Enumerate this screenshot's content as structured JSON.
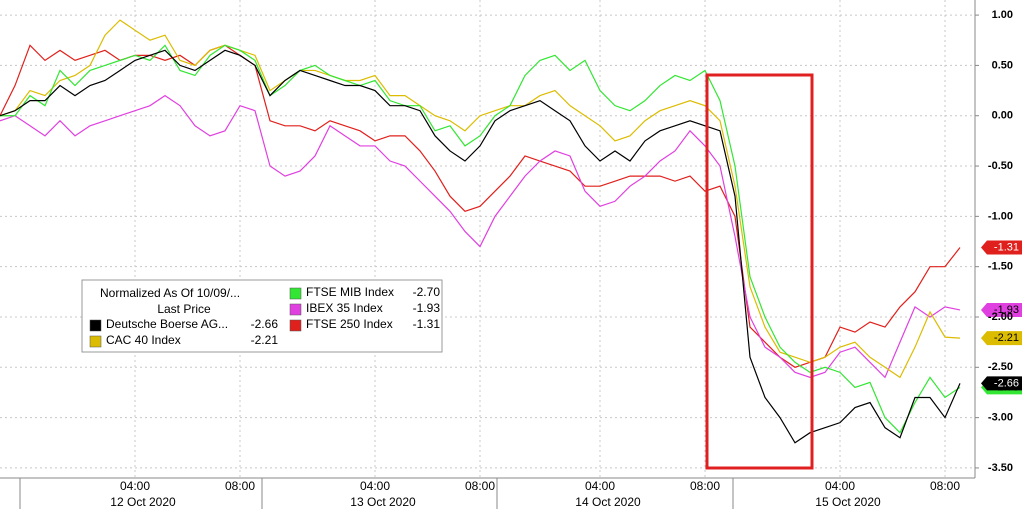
{
  "chart_data": {
    "type": "line",
    "categories": [
      null,
      null,
      null,
      null,
      null,
      null,
      null,
      null,
      null,
      "04:00",
      null,
      null,
      null,
      null,
      null,
      null,
      "08:00",
      null,
      null,
      null,
      null,
      null,
      null,
      null,
      null,
      "04:00",
      null,
      null,
      null,
      null,
      null,
      null,
      "08:00",
      null,
      null,
      null,
      null,
      null,
      null,
      null,
      "04:00",
      null,
      null,
      null,
      null,
      null,
      null,
      "08:00",
      null,
      null,
      null,
      null,
      null,
      null,
      null,
      null,
      "04:00",
      null,
      null,
      null,
      null,
      null,
      null,
      "08:00",
      null
    ],
    "day_labels": [
      "12 Oct 2020",
      "13 Oct 2020",
      "14 Oct 2020",
      "15 Oct 2020"
    ],
    "ylim": [
      -3.6,
      1.15
    ],
    "yticks": [
      {
        "value": 1,
        "label": "1.00"
      },
      {
        "value": 0.5,
        "label": "0.50"
      },
      {
        "value": 0,
        "label": "0.00"
      },
      {
        "value": -0.5,
        "label": "-0.50"
      },
      {
        "value": -1,
        "label": "-1.00"
      },
      {
        "value": -1.5,
        "label": "-1.50"
      },
      {
        "value": -2,
        "label": "-2.00"
      },
      {
        "value": -2.5,
        "label": "-2.50"
      },
      {
        "value": -3,
        "label": "-3.00"
      },
      {
        "value": -3.5,
        "label": "-3.50"
      }
    ],
    "grid": true,
    "legend": {
      "title": "Normalized As Of 10/09/...",
      "subtitle": "Last Price"
    },
    "series": [
      {
        "name": "Deutsche Boerse AG...",
        "last_price": "-2.66",
        "color": "#000000",
        "text_color": "#ffffff",
        "values": [
          0.0,
          0.05,
          0.15,
          0.15,
          0.3,
          0.2,
          0.3,
          0.35,
          0.45,
          0.55,
          0.6,
          0.65,
          0.5,
          0.45,
          0.55,
          0.65,
          0.6,
          0.5,
          0.2,
          0.35,
          0.45,
          0.4,
          0.35,
          0.3,
          0.3,
          0.25,
          0.1,
          0.1,
          0.05,
          -0.2,
          -0.35,
          -0.45,
          -0.3,
          -0.05,
          0.05,
          0.1,
          0.15,
          0.05,
          -0.05,
          -0.3,
          -0.45,
          -0.35,
          -0.45,
          -0.25,
          -0.15,
          -0.1,
          -0.05,
          -0.1,
          -0.15,
          -0.8,
          -2.4,
          -2.8,
          -3.0,
          -3.25,
          -3.15,
          -3.1,
          -3.05,
          -2.9,
          -2.85,
          -3.1,
          -3.2,
          -2.8,
          -2.8,
          -3.0,
          -2.66
        ]
      },
      {
        "name": "CAC 40 Index",
        "last_price": "-2.21",
        "color": "#dcbc00",
        "text_color": "#000000",
        "values": [
          0.0,
          0.05,
          0.25,
          0.2,
          0.35,
          0.4,
          0.5,
          0.8,
          0.95,
          0.85,
          0.75,
          0.8,
          0.55,
          0.5,
          0.65,
          0.7,
          0.65,
          0.6,
          0.25,
          0.35,
          0.45,
          0.45,
          0.4,
          0.35,
          0.35,
          0.4,
          0.2,
          0.2,
          0.1,
          0.0,
          -0.05,
          -0.15,
          0.0,
          0.05,
          0.1,
          0.1,
          0.2,
          0.25,
          0.1,
          0.0,
          -0.1,
          -0.25,
          -0.2,
          -0.05,
          0.05,
          0.1,
          0.15,
          0.1,
          -0.05,
          -0.7,
          -1.7,
          -2.1,
          -2.35,
          -2.4,
          -2.45,
          -2.4,
          -2.3,
          -2.25,
          -2.4,
          -2.5,
          -2.6,
          -2.3,
          -1.95,
          -2.2,
          -2.21
        ]
      },
      {
        "name": "FTSE MIB Index",
        "last_price": "-2.70",
        "color": "#33e633",
        "text_color": "#000000",
        "values": [
          0.0,
          0.0,
          0.2,
          0.1,
          0.45,
          0.3,
          0.45,
          0.5,
          0.55,
          0.6,
          0.55,
          0.7,
          0.45,
          0.4,
          0.6,
          0.7,
          0.65,
          0.55,
          0.2,
          0.3,
          0.45,
          0.5,
          0.4,
          0.35,
          0.3,
          0.35,
          0.15,
          0.1,
          0.1,
          -0.15,
          -0.1,
          -0.3,
          -0.2,
          0.0,
          0.1,
          0.4,
          0.55,
          0.6,
          0.45,
          0.55,
          0.25,
          0.1,
          0.05,
          0.15,
          0.3,
          0.4,
          0.35,
          0.45,
          0.15,
          -0.5,
          -1.6,
          -2.0,
          -2.3,
          -2.45,
          -2.55,
          -2.5,
          -2.55,
          -2.7,
          -2.65,
          -3.0,
          -3.15,
          -2.85,
          -2.6,
          -2.8,
          -2.7
        ]
      },
      {
        "name": "IBEX 35 Index",
        "last_price": "-1.93",
        "color": "#e040e0",
        "text_color": "#000000",
        "values": [
          -0.05,
          0.0,
          -0.1,
          -0.2,
          -0.05,
          -0.2,
          -0.1,
          -0.05,
          0.0,
          0.05,
          0.1,
          0.2,
          0.1,
          -0.1,
          -0.2,
          -0.15,
          0.1,
          0.05,
          -0.5,
          -0.6,
          -0.55,
          -0.4,
          -0.1,
          -0.2,
          -0.3,
          -0.3,
          -0.45,
          -0.5,
          -0.65,
          -0.8,
          -0.95,
          -1.15,
          -1.3,
          -1.0,
          -0.8,
          -0.6,
          -0.45,
          -0.35,
          -0.4,
          -0.75,
          -0.9,
          -0.85,
          -0.7,
          -0.6,
          -0.45,
          -0.35,
          -0.15,
          -0.3,
          -0.5,
          -1.2,
          -2.0,
          -2.3,
          -2.4,
          -2.55,
          -2.6,
          -2.55,
          -2.35,
          -2.3,
          -2.45,
          -2.6,
          -2.25,
          -1.9,
          -2.0,
          -1.9,
          -1.93
        ]
      },
      {
        "name": "FTSE 250 Index",
        "last_price": "-1.31",
        "color": "#e0201c",
        "text_color": "#ffffff",
        "values": [
          0.0,
          0.3,
          0.7,
          0.55,
          0.65,
          0.55,
          0.6,
          0.65,
          0.55,
          0.6,
          0.6,
          0.55,
          0.6,
          0.5,
          0.65,
          0.7,
          0.6,
          0.5,
          -0.05,
          -0.1,
          -0.1,
          -0.15,
          -0.05,
          -0.1,
          -0.15,
          -0.25,
          -0.2,
          -0.2,
          -0.35,
          -0.55,
          -0.8,
          -0.95,
          -0.9,
          -0.75,
          -0.6,
          -0.4,
          -0.45,
          -0.5,
          -0.55,
          -0.7,
          -0.7,
          -0.65,
          -0.6,
          -0.6,
          -0.6,
          -0.65,
          -0.6,
          -0.75,
          -0.7,
          -1.0,
          -2.1,
          -2.25,
          -2.4,
          -2.5,
          -2.45,
          -2.4,
          -2.1,
          -2.15,
          -2.05,
          -2.1,
          -1.9,
          -1.75,
          -1.5,
          -1.5,
          -1.31
        ]
      }
    ]
  }
}
